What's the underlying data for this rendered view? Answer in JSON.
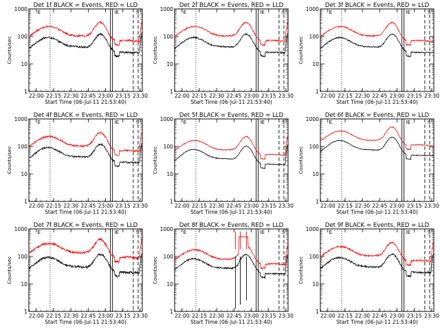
{
  "chart_data": {
    "type": "line",
    "y_scale": "log",
    "y_range": [
      1,
      1000
    ],
    "y_ticks": [
      "1",
      "10",
      "100",
      "1000"
    ],
    "ylabel": "Counts/sec",
    "x_ticks": [
      "22:00",
      "22:15",
      "22:30",
      "22:45",
      "23:00",
      "23:15",
      "23:30"
    ],
    "x_range_hours": [
      21.893,
      23.53
    ],
    "xlabel": "Start Time (06-Jul-11 21:53:40)",
    "series_names": [
      "Events",
      "LLD"
    ],
    "series_colors": {
      "Events": "#000000",
      "LLD": "#ff0000"
    },
    "markers": {
      "dotted_hours": [
        22.2
      ],
      "solid_hours": [
        23.07,
        23.1
      ],
      "dashed_hours": [
        23.4,
        23.47
      ],
      "marker_hours": {
        "E": 22.04,
        "IE": 23.16,
        "S": 23.46
      }
    },
    "panels": [
      {
        "title": "Det 1f BLACK = Events, RED = LLD",
        "events_scale": 1.0,
        "lld_scale": 2.6,
        "noise": 0.08,
        "end_spike": true,
        "dropout": false,
        "flat_after_dropout": false
      },
      {
        "title": "Det 2f BLACK = Events, RED = LLD",
        "events_scale": 1.0,
        "lld_scale": 2.6,
        "noise": 0.06,
        "end_spike": true,
        "dropout": false,
        "flat_after_dropout": false
      },
      {
        "title": "Det 3f BLACK = Events, RED = LLD",
        "events_scale": 1.0,
        "lld_scale": 2.6,
        "noise": 0.05,
        "end_spike": false,
        "dropout": false,
        "flat_after_dropout": false
      },
      {
        "title": "Det 4f BLACK = Events, RED = LLD",
        "events_scale": 1.0,
        "lld_scale": 2.6,
        "noise": 0.07,
        "end_spike": true,
        "dropout": false,
        "flat_after_dropout": false
      },
      {
        "title": "Det 5f BLACK = Events, RED = LLD",
        "events_scale": 0.85,
        "lld_scale": 2.2,
        "noise": 0.03,
        "end_spike": true,
        "dropout": false,
        "flat_after_dropout": false
      },
      {
        "title": "Det 6f BLACK = Events, RED = LLD",
        "events_scale": 1.8,
        "lld_scale": 2.3,
        "noise": 0.03,
        "end_spike": false,
        "dropout": false,
        "flat_after_dropout": false
      },
      {
        "title": "Det 7f BLACK = Events, RED = LLD",
        "events_scale": 1.0,
        "lld_scale": 3.4,
        "noise": 0.1,
        "end_spike": true,
        "dropout": false,
        "flat_after_dropout": false
      },
      {
        "title": "Det 8f BLACK = Events, RED = LLD",
        "events_scale": 0.9,
        "lld_scale": 2.2,
        "noise": 0.06,
        "end_spike": true,
        "dropout": true,
        "flat_after_dropout": true
      },
      {
        "title": "Det 9f BLACK = Events, RED = LLD",
        "events_scale": 1.0,
        "lld_scale": 2.6,
        "noise": 0.07,
        "end_spike": true,
        "dropout": false,
        "flat_after_dropout": false
      }
    ]
  }
}
